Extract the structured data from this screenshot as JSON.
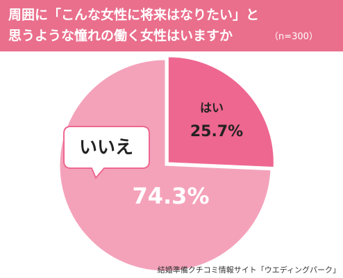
{
  "chart_data": {
    "type": "pie",
    "title_lines": [
      "周囲に「こんな女性に将来はなりたい」と",
      "思うような憧れの働く女性はいますか"
    ],
    "subtitle": "（n=300）",
    "categories": [
      "はい",
      "いいえ"
    ],
    "values": [
      25.7,
      74.3
    ],
    "value_labels": [
      "25.7%",
      "74.3%"
    ],
    "colors": [
      "#ee6790",
      "#f4a2ba"
    ],
    "source": "結婚準備クチコミ情報サイト「ウエディングパーク」"
  }
}
